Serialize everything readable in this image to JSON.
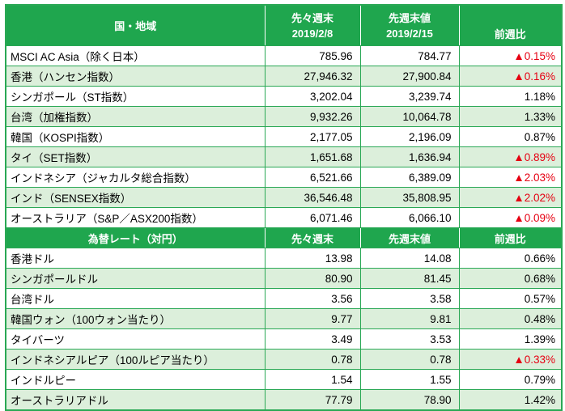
{
  "colors": {
    "header_green": "#1fa64e",
    "border_green": "#2aa855",
    "row_alt_green": "#dcefdb",
    "negative_red": "#e60012"
  },
  "indices_header": {
    "country_label": "国・地域",
    "prev2_label": "先々週末",
    "prev2_date": "2019/2/8",
    "prev_label": "先週末値",
    "prev_date": "2019/2/15",
    "change_label": "前週比"
  },
  "indices_rows": [
    {
      "name": "MSCI AC Asia（除く日本）",
      "prev2": "785.96",
      "prev": "784.77",
      "change": "▲0.15%",
      "negative": true
    },
    {
      "name": "香港（ハンセン指数）",
      "prev2": "27,946.32",
      "prev": "27,900.84",
      "change": "▲0.16%",
      "negative": true
    },
    {
      "name": "シンガポール（ST指数）",
      "prev2": "3,202.04",
      "prev": "3,239.74",
      "change": "1.18%",
      "negative": false
    },
    {
      "name": "台湾（加権指数）",
      "prev2": "9,932.26",
      "prev": "10,064.78",
      "change": "1.33%",
      "negative": false
    },
    {
      "name": "韓国（KOSPI指数）",
      "prev2": "2,177.05",
      "prev": "2,196.09",
      "change": "0.87%",
      "negative": false
    },
    {
      "name": "タイ（SET指数）",
      "prev2": "1,651.68",
      "prev": "1,636.94",
      "change": "▲0.89%",
      "negative": true
    },
    {
      "name": "インドネシア（ジャカルタ総合指数）",
      "prev2": "6,521.66",
      "prev": "6,389.09",
      "change": "▲2.03%",
      "negative": true
    },
    {
      "name": "インド（SENSEX指数）",
      "prev2": "36,546.48",
      "prev": "35,808.95",
      "change": "▲2.02%",
      "negative": true
    },
    {
      "name": "オーストラリア（S&P／ASX200指数）",
      "prev2": "6,071.46",
      "prev": "6,066.10",
      "change": "▲0.09%",
      "negative": true
    }
  ],
  "fx_header": {
    "title": "為替レート（対円）",
    "prev2_label": "先々週末",
    "prev_label": "先週末値",
    "change_label": "前週比"
  },
  "fx_rows": [
    {
      "name": "香港ドル",
      "prev2": "13.98",
      "prev": "14.08",
      "change": "0.66%",
      "negative": false
    },
    {
      "name": "シンガポールドル",
      "prev2": "80.90",
      "prev": "81.45",
      "change": "0.68%",
      "negative": false
    },
    {
      "name": "台湾ドル",
      "prev2": "3.56",
      "prev": "3.58",
      "change": "0.57%",
      "negative": false
    },
    {
      "name": "韓国ウォン（100ウォン当たり）",
      "prev2": "9.77",
      "prev": "9.81",
      "change": "0.48%",
      "negative": false
    },
    {
      "name": "タイバーツ",
      "prev2": "3.49",
      "prev": "3.53",
      "change": "1.39%",
      "negative": false
    },
    {
      "name": "インドネシアルピア（100ルピア当たり）",
      "prev2": "0.78",
      "prev": "0.78",
      "change": "▲0.33%",
      "negative": true
    },
    {
      "name": "インドルピー",
      "prev2": "1.54",
      "prev": "1.55",
      "change": "0.79%",
      "negative": false
    },
    {
      "name": "オーストラリアドル",
      "prev2": "77.79",
      "prev": "78.90",
      "change": "1.42%",
      "negative": false
    }
  ]
}
